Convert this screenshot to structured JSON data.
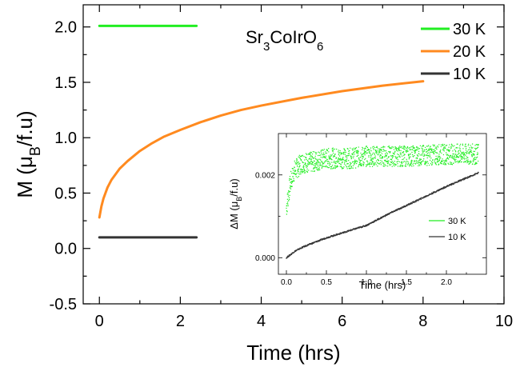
{
  "chart_data": [
    {
      "type": "line",
      "title": "Sr3CoIrO6",
      "title_parts": {
        "base1": "Sr",
        "sub1": "3",
        "base2": "CoIrO",
        "sub2": "6"
      },
      "xlabel": "Time (hrs)",
      "ylabel": {
        "prefix": "M (μ",
        "sub": "B",
        "suffix": "/f.u)"
      },
      "xlim": [
        -0.4,
        10
      ],
      "ylim": [
        -0.5,
        2.2
      ],
      "xticks": [
        0,
        2,
        4,
        6,
        8,
        10
      ],
      "xtick_labels": [
        "0",
        "2",
        "4",
        "6",
        "8",
        "10"
      ],
      "yticks": [
        -0.5,
        0.0,
        0.5,
        1.0,
        1.5,
        2.0
      ],
      "ytick_labels": [
        "-0.5",
        "0.0",
        "0.5",
        "1.0",
        "1.5",
        "2.0"
      ],
      "legend_position": "top-right",
      "grid": false,
      "series": [
        {
          "name": "30 K",
          "color": "#22ee22",
          "x": [
            0,
            0.4,
            0.8,
            1.2,
            1.6,
            2.0,
            2.4
          ],
          "y": [
            2.01,
            2.01,
            2.01,
            2.01,
            2.01,
            2.01,
            2.01
          ]
        },
        {
          "name": "20 K",
          "color": "#ff8a1f",
          "x": [
            0,
            0.05,
            0.1,
            0.2,
            0.3,
            0.5,
            0.7,
            1.0,
            1.3,
            1.6,
            2.0,
            2.5,
            3.0,
            3.5,
            4.0,
            5.0,
            6.0,
            7.0,
            8.0
          ],
          "y": [
            0.28,
            0.38,
            0.45,
            0.55,
            0.62,
            0.72,
            0.79,
            0.88,
            0.95,
            1.01,
            1.07,
            1.14,
            1.2,
            1.25,
            1.29,
            1.36,
            1.42,
            1.47,
            1.51
          ]
        },
        {
          "name": "10 K",
          "color": "#333333",
          "x": [
            0,
            0.4,
            0.8,
            1.2,
            1.6,
            2.0,
            2.4
          ],
          "y": [
            0.1,
            0.1,
            0.1,
            0.1,
            0.1,
            0.1,
            0.1
          ]
        }
      ]
    },
    {
      "type": "scatter",
      "title": "",
      "xlabel": "Time (hrs)",
      "ylabel": {
        "prefix": "ΔM (μ",
        "sub": "B",
        "suffix": "/f.u)"
      },
      "xlim": [
        -0.1,
        2.5
      ],
      "ylim": [
        -0.0004,
        0.003
      ],
      "xticks": [
        0.0,
        0.5,
        1.0,
        1.5,
        2.0
      ],
      "xtick_labels": [
        "0.0",
        "0.5",
        "1.0",
        "1.5",
        "2.0"
      ],
      "yticks": [
        0.0,
        0.002
      ],
      "ytick_labels": [
        "0.000",
        "0.002"
      ],
      "legend_position": "bottom-right",
      "grid": false,
      "series": [
        {
          "name": "30 K",
          "color": "#22ee22",
          "x": [
            0.0,
            0.05,
            0.1,
            0.2,
            0.3,
            0.5,
            0.8,
            1.0,
            1.5,
            2.0,
            2.4
          ],
          "y": [
            0.0012,
            0.0018,
            0.0021,
            0.0023,
            0.0023,
            0.0024,
            0.0024,
            0.00245,
            0.00245,
            0.0025,
            0.0025
          ]
        },
        {
          "name": "10 K",
          "color": "#333333",
          "x": [
            0.0,
            0.05,
            0.1,
            0.2,
            0.3,
            0.5,
            0.7,
            1.0,
            1.3,
            1.6,
            2.0,
            2.4
          ],
          "y": [
            0.0,
            7e-05,
            0.00015,
            0.00025,
            0.00033,
            0.00048,
            0.0006,
            0.00078,
            0.00108,
            0.00135,
            0.00172,
            0.00205
          ]
        }
      ]
    }
  ]
}
